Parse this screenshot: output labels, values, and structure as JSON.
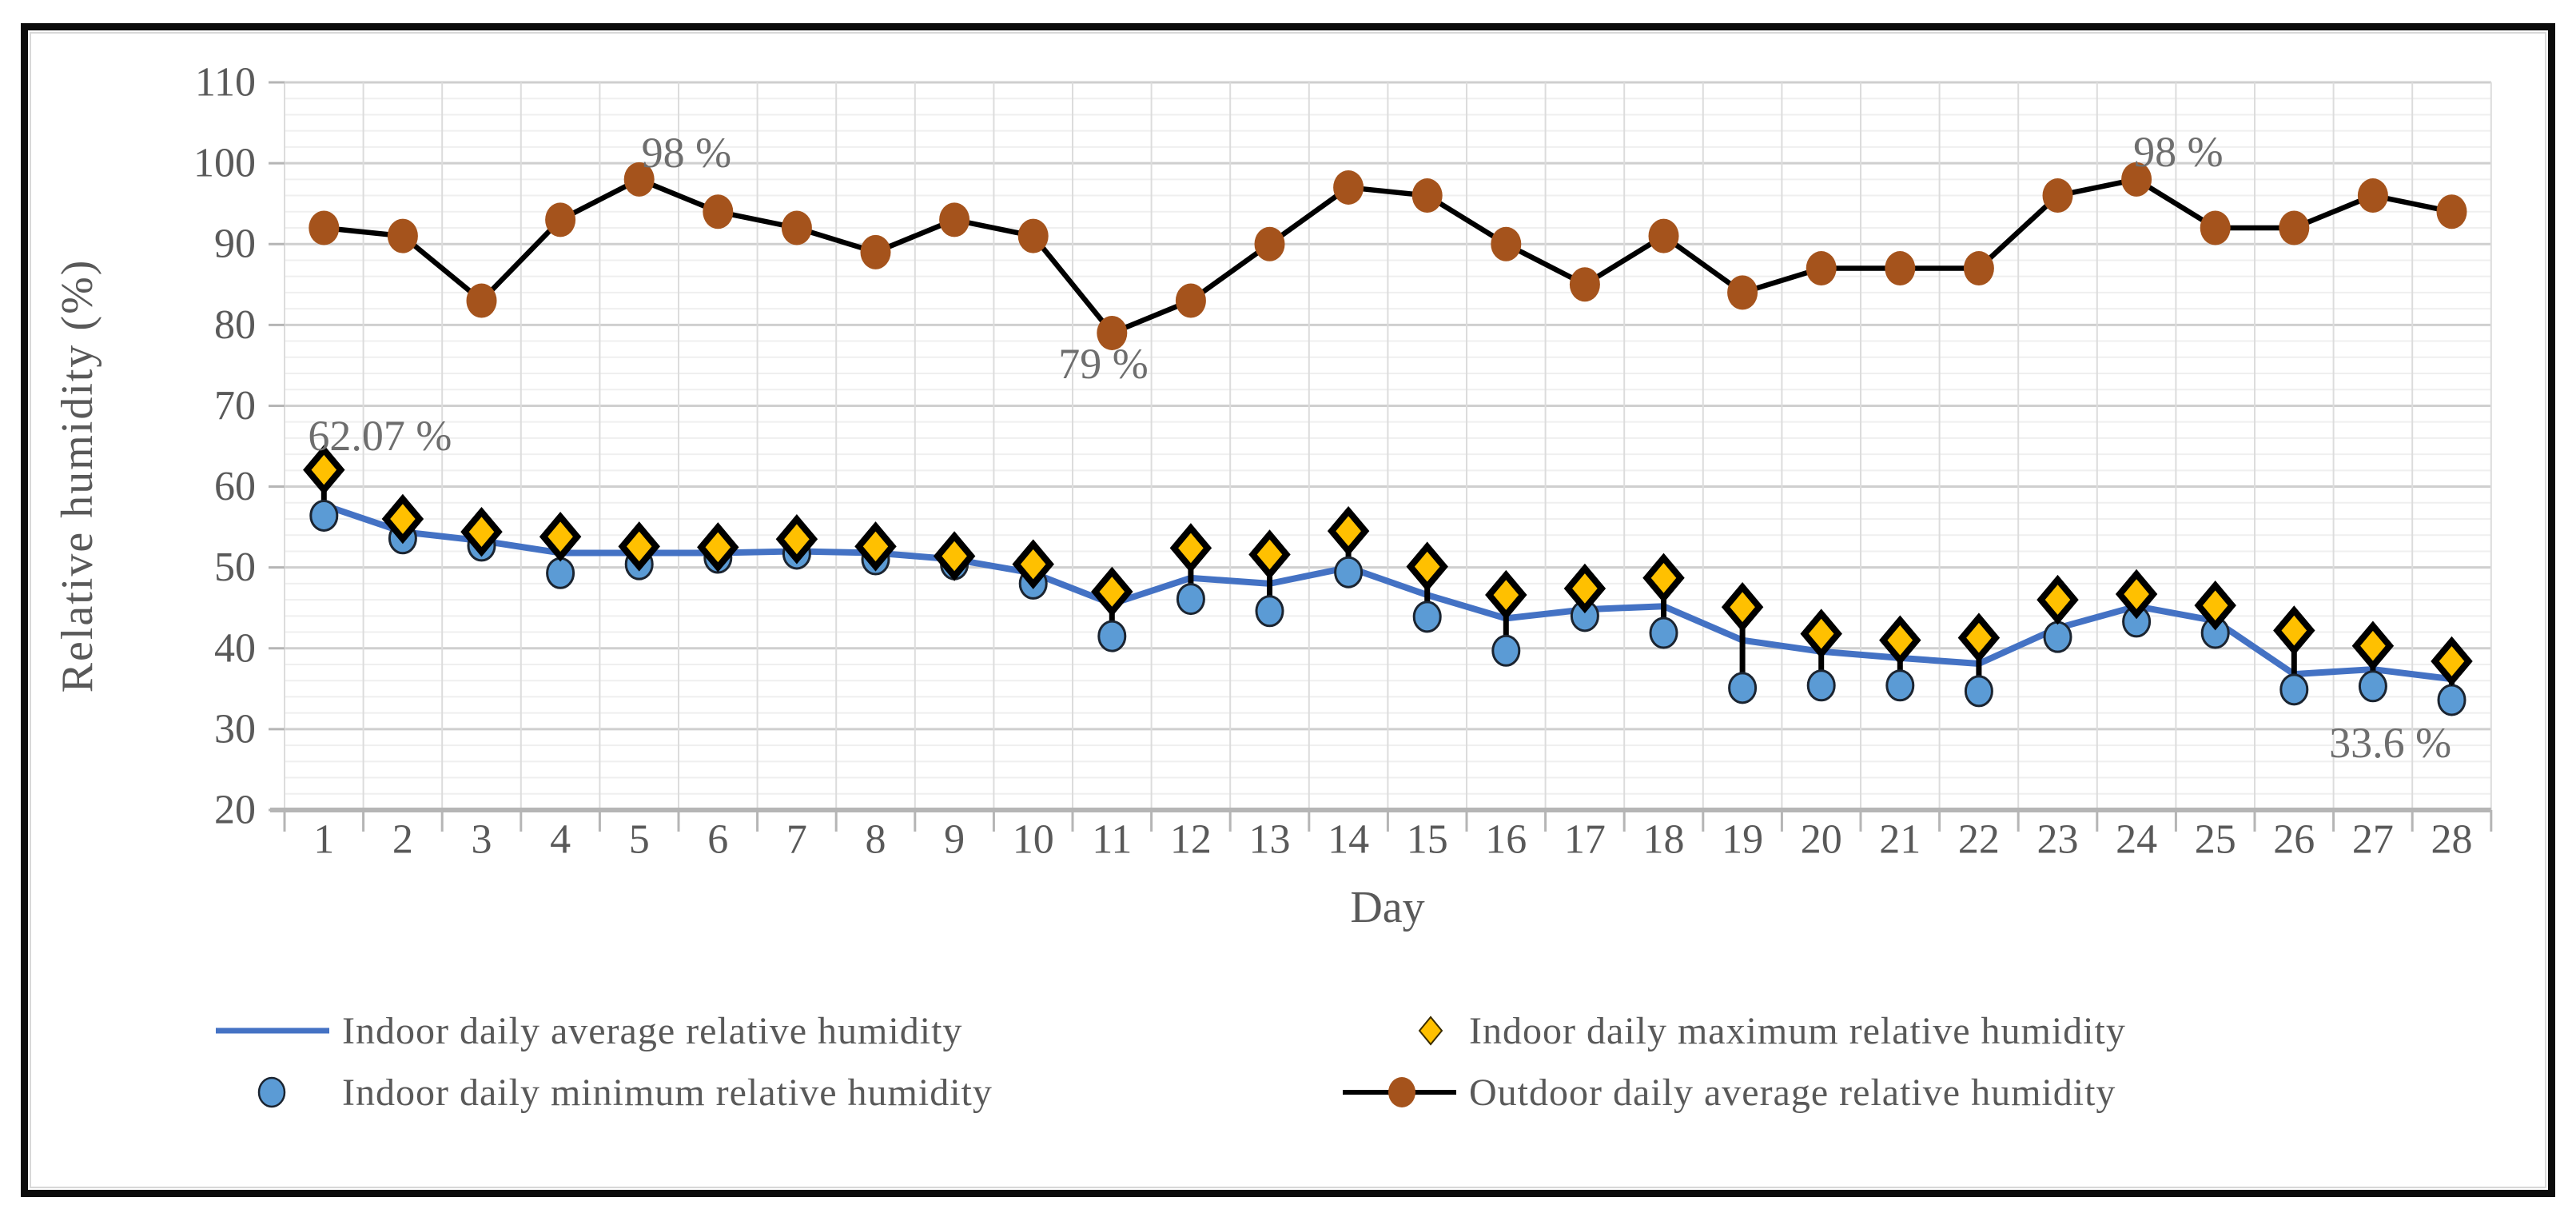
{
  "figure_title": "",
  "y_axis": {
    "title": "Relative humidity (%)",
    "ticks": [
      110,
      100,
      90,
      80,
      70,
      60,
      50,
      40,
      30,
      20
    ]
  },
  "x_axis": {
    "title": "Day",
    "ticks": [
      1,
      2,
      3,
      4,
      5,
      6,
      7,
      8,
      9,
      10,
      11,
      12,
      13,
      14,
      15,
      16,
      17,
      18,
      19,
      20,
      21,
      22,
      23,
      24,
      25,
      26,
      27,
      28
    ]
  },
  "legend": {
    "position": "bottom",
    "items": [
      {
        "label": "Indoor daily average relative humidity",
        "marker": "line",
        "color": "#4472C4"
      },
      {
        "label": "Indoor daily minimum relative humidity",
        "marker": "circle",
        "color": "#5B9BD5"
      },
      {
        "label": "Indoor daily maximum relative humidity",
        "marker": "diamond",
        "color": "#FFC000"
      },
      {
        "label": "Outdoor daily average relative humidity",
        "marker": "line-circle",
        "color": "#A5531C"
      }
    ]
  },
  "colors": {
    "indoor_average_line": "#4472C4",
    "indoor_min_fill": "#5B9BD5",
    "indoor_min_stroke": "#1b2430",
    "indoor_max_fill": "#FFC000",
    "indoor_max_stroke": "#000000",
    "outdoor_marker": "#A5531C",
    "outdoor_line": "#000000",
    "high_low_line": "#000000",
    "text_gray": "#595959",
    "annotation_gray": "#6e6e6e",
    "grid_major": "#cfcfcf",
    "grid_minor": "#efefef",
    "grid_vertical": "#dcdcdc",
    "axis_line": "#b5b5b5"
  },
  "chart_data": {
    "type": "line",
    "x": [
      1,
      2,
      3,
      4,
      5,
      6,
      7,
      8,
      9,
      10,
      11,
      12,
      13,
      14,
      15,
      16,
      17,
      18,
      19,
      20,
      21,
      22,
      23,
      24,
      25,
      26,
      27,
      28
    ],
    "xlabel": "Day",
    "ylabel": "Relative humidity (%)",
    "ylim": [
      20,
      110
    ],
    "ytick_interval": 10,
    "yminor_interval": 2,
    "grid": true,
    "legend_position": "bottom",
    "series": [
      {
        "name": "Indoor daily average relative humidity",
        "type": "line",
        "color": "#4472C4",
        "values": [
          57.7,
          54.4,
          53.3,
          51.8,
          51.8,
          51.8,
          52.0,
          51.8,
          51.0,
          49.3,
          45.5,
          48.7,
          48.0,
          50.0,
          46.6,
          43.7,
          44.8,
          45.2,
          41.0,
          39.6,
          38.8,
          38.1,
          42.5,
          45.2,
          43.4,
          36.8,
          37.4,
          36.2
        ]
      },
      {
        "name": "Indoor daily minimum relative humidity",
        "type": "scatter-circle",
        "color": "#5B9BD5",
        "values": [
          56.4,
          53.6,
          52.7,
          49.3,
          50.4,
          51.2,
          51.7,
          51.0,
          50.4,
          48.0,
          41.5,
          46.1,
          44.6,
          49.4,
          43.9,
          39.7,
          44.0,
          41.9,
          35.1,
          35.4,
          35.4,
          34.7,
          41.4,
          43.3,
          41.9,
          34.9,
          35.3,
          33.6
        ]
      },
      {
        "name": "Indoor daily maximum relative humidity",
        "type": "scatter-diamond",
        "color": "#FFC000",
        "values": [
          62.07,
          56.0,
          54.4,
          53.8,
          52.6,
          52.5,
          53.5,
          52.6,
          51.4,
          50.4,
          47.0,
          52.4,
          51.6,
          54.5,
          50.1,
          46.6,
          47.4,
          48.7,
          45.1,
          41.8,
          41.0,
          41.3,
          46.0,
          46.7,
          45.3,
          42.2,
          40.3,
          38.4
        ]
      },
      {
        "name": "Outdoor daily average relative humidity",
        "type": "line-circle",
        "color": "#A5531C",
        "line_color": "#000000",
        "values": [
          92,
          91,
          83,
          93,
          98,
          94,
          92,
          89,
          93,
          91,
          79,
          83,
          90,
          97,
          96,
          90,
          85,
          91,
          84,
          87,
          87,
          87,
          96,
          98,
          92,
          92,
          96,
          94
        ]
      }
    ],
    "high_low_lines": {
      "between": [
        "Indoor daily maximum relative humidity",
        "Indoor daily minimum relative humidity"
      ],
      "color": "#000000"
    },
    "annotations": [
      {
        "text": "62.07 %",
        "day": 1.71,
        "value": 66.3
      },
      {
        "text": "98 %",
        "day": 5.6,
        "value": 101.3
      },
      {
        "text": "79 %",
        "day": 10.89,
        "value": 75.2
      },
      {
        "text": "98 %",
        "day": 24.53,
        "value": 101.4
      },
      {
        "text": "33.6 %",
        "day": 27.22,
        "value": 28.3
      }
    ]
  }
}
